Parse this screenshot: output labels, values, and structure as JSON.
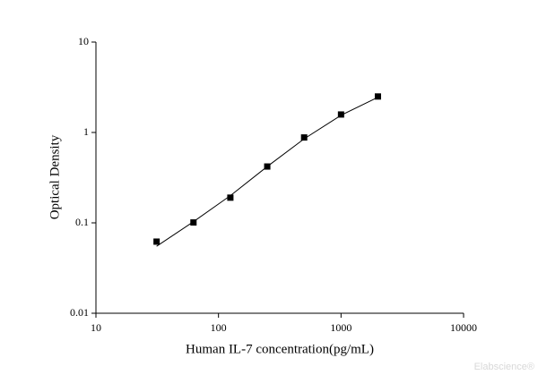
{
  "chart_data": {
    "type": "scatter",
    "x_label": "Human IL-7 concentration(pg/mL)",
    "y_label": "Optical Density",
    "x": [
      31.25,
      62.5,
      125,
      250,
      500,
      1000,
      2000
    ],
    "series": [
      {
        "color": "#000000",
        "values": [
          0.062,
          0.101,
          0.19,
          0.42,
          0.88,
          1.58,
          2.5
        ]
      }
    ],
    "fit": {
      "color": "#000000",
      "values": [
        0.055,
        0.103,
        0.2,
        0.42,
        0.85,
        1.55,
        2.45
      ]
    },
    "xlim": [
      10,
      10000
    ],
    "xticks": [
      10,
      100,
      1000,
      10000
    ],
    "ylim": [
      0.01,
      10
    ],
    "yticks": [
      0.01,
      0.1,
      1,
      10
    ],
    "xscale": "log",
    "yscale": "log",
    "watermark": "Elabscience®"
  }
}
